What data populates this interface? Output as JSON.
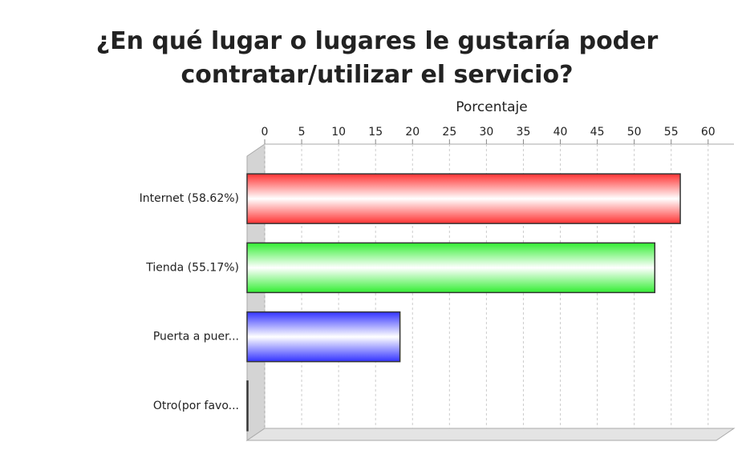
{
  "chart_data": {
    "type": "bar",
    "orientation": "horizontal",
    "title": "¿En qué lugar o lugares le gustaría poder contratar/utilizar el servicio?",
    "xlabel": "Porcentaje",
    "categories": [
      "Internet (58.62%)",
      "Tienda (55.17%)",
      "Puerta a puer...",
      "Otro(por favo..."
    ],
    "values": [
      58.62,
      55.17,
      20.69,
      0
    ],
    "colors": [
      "#ff3333",
      "#33ee33",
      "#3333ff",
      "#999999"
    ],
    "xlim": [
      0,
      61
    ],
    "xticks": [
      0,
      5,
      10,
      15,
      20,
      25,
      30,
      35,
      40,
      45,
      50,
      55,
      60
    ],
    "grid": true
  }
}
